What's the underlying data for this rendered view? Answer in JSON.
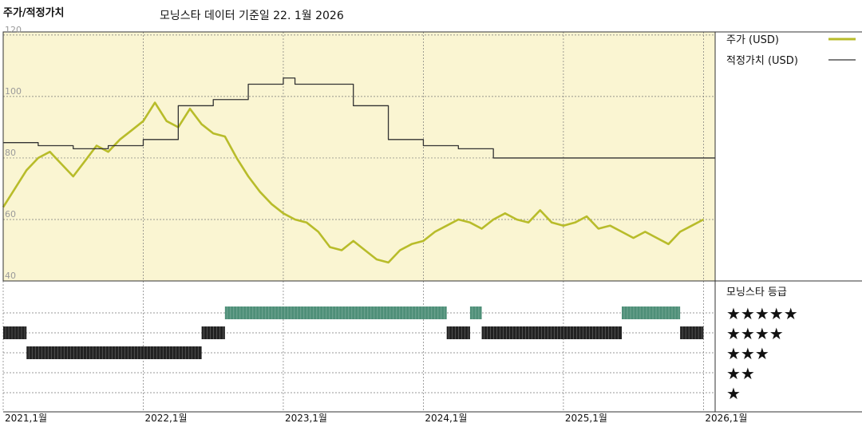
{
  "chart_data": {
    "type": "line",
    "title": "주가/적정가치",
    "subtitle": "모닝스타 데이터 기준일 22. 1월 2026",
    "x_ticks": [
      "2021,1월",
      "2022,1월",
      "2023,1월",
      "2024,1월",
      "2025,1월",
      "2026,1월"
    ],
    "y_ticks": [
      120,
      100,
      80,
      60,
      40
    ],
    "ylim": [
      40,
      121
    ],
    "xlim": [
      "2021-01",
      "2026-02"
    ],
    "grid": true,
    "legend_position": "right",
    "series": [
      {
        "name": "주가 (USD)",
        "color": "#b8bc2a",
        "points": [
          [
            "2021-01",
            64
          ],
          [
            "2021-02",
            70
          ],
          [
            "2021-03",
            76
          ],
          [
            "2021-04",
            80
          ],
          [
            "2021-05",
            82
          ],
          [
            "2021-06",
            78
          ],
          [
            "2021-07",
            74
          ],
          [
            "2021-08",
            79
          ],
          [
            "2021-09",
            84
          ],
          [
            "2021-10",
            82
          ],
          [
            "2021-11",
            86
          ],
          [
            "2021-12",
            89
          ],
          [
            "2022-01",
            92
          ],
          [
            "2022-02",
            98
          ],
          [
            "2022-03",
            92
          ],
          [
            "2022-04",
            90
          ],
          [
            "2022-05",
            96
          ],
          [
            "2022-06",
            91
          ],
          [
            "2022-07",
            88
          ],
          [
            "2022-08",
            87
          ],
          [
            "2022-09",
            80
          ],
          [
            "2022-10",
            74
          ],
          [
            "2022-11",
            69
          ],
          [
            "2022-12",
            65
          ],
          [
            "2023-01",
            62
          ],
          [
            "2023-02",
            60
          ],
          [
            "2023-03",
            59
          ],
          [
            "2023-04",
            56
          ],
          [
            "2023-05",
            51
          ],
          [
            "2023-06",
            50
          ],
          [
            "2023-07",
            53
          ],
          [
            "2023-08",
            50
          ],
          [
            "2023-09",
            47
          ],
          [
            "2023-10",
            46
          ],
          [
            "2023-11",
            50
          ],
          [
            "2023-12",
            52
          ],
          [
            "2024-01",
            53
          ],
          [
            "2024-02",
            56
          ],
          [
            "2024-03",
            58
          ],
          [
            "2024-04",
            60
          ],
          [
            "2024-05",
            59
          ],
          [
            "2024-06",
            57
          ],
          [
            "2024-07",
            60
          ],
          [
            "2024-08",
            62
          ],
          [
            "2024-09",
            60
          ],
          [
            "2024-10",
            59
          ],
          [
            "2024-11",
            63
          ],
          [
            "2024-12",
            59
          ],
          [
            "2025-01",
            58
          ],
          [
            "2025-02",
            59
          ],
          [
            "2025-03",
            61
          ],
          [
            "2025-04",
            57
          ],
          [
            "2025-05",
            58
          ],
          [
            "2025-06",
            56
          ],
          [
            "2025-07",
            54
          ],
          [
            "2025-08",
            56
          ],
          [
            "2025-09",
            54
          ],
          [
            "2025-10",
            52
          ],
          [
            "2025-11",
            56
          ],
          [
            "2025-12",
            58
          ],
          [
            "2026-01",
            60
          ]
        ]
      },
      {
        "name": "적정가치 (USD)",
        "color": "#333333",
        "step": true,
        "points": [
          [
            "2021-01",
            85
          ],
          [
            "2021-04",
            84
          ],
          [
            "2021-07",
            83
          ],
          [
            "2021-10",
            84
          ],
          [
            "2022-01",
            86
          ],
          [
            "2022-04",
            97
          ],
          [
            "2022-07",
            99
          ],
          [
            "2022-10",
            104
          ],
          [
            "2023-01",
            106
          ],
          [
            "2023-02",
            104
          ],
          [
            "2023-07",
            97
          ],
          [
            "2023-10",
            86
          ],
          [
            "2024-01",
            84
          ],
          [
            "2024-04",
            83
          ],
          [
            "2024-07",
            80
          ],
          [
            "2026-01",
            80
          ]
        ]
      }
    ],
    "rating": {
      "title": "모닝스타 등급",
      "levels": [
        "★★★★★",
        "★★★★",
        "★★★",
        "★★",
        "★"
      ],
      "level_stars": [
        5,
        4,
        3,
        2,
        1
      ],
      "segments": [
        {
          "from": "2021-01",
          "to": "2021-03",
          "stars": 4
        },
        {
          "from": "2021-03",
          "to": "2022-06",
          "stars": 3
        },
        {
          "from": "2022-06",
          "to": "2022-08",
          "stars": 4
        },
        {
          "from": "2022-08",
          "to": "2024-03",
          "stars": 5
        },
        {
          "from": "2024-03",
          "to": "2024-05",
          "stars": 4
        },
        {
          "from": "2024-05",
          "to": "2024-06",
          "stars": 5
        },
        {
          "from": "2024-06",
          "to": "2025-06",
          "stars": 4
        },
        {
          "from": "2025-06",
          "to": "2025-11",
          "stars": 5
        },
        {
          "from": "2025-11",
          "to": "2026-01",
          "stars": 4
        }
      ],
      "colors": {
        "5": "#4e8f78",
        "4": "#222222",
        "3": "#222222"
      }
    },
    "colors": {
      "plot_background": "#faf5d2",
      "grid": "#777777"
    }
  }
}
